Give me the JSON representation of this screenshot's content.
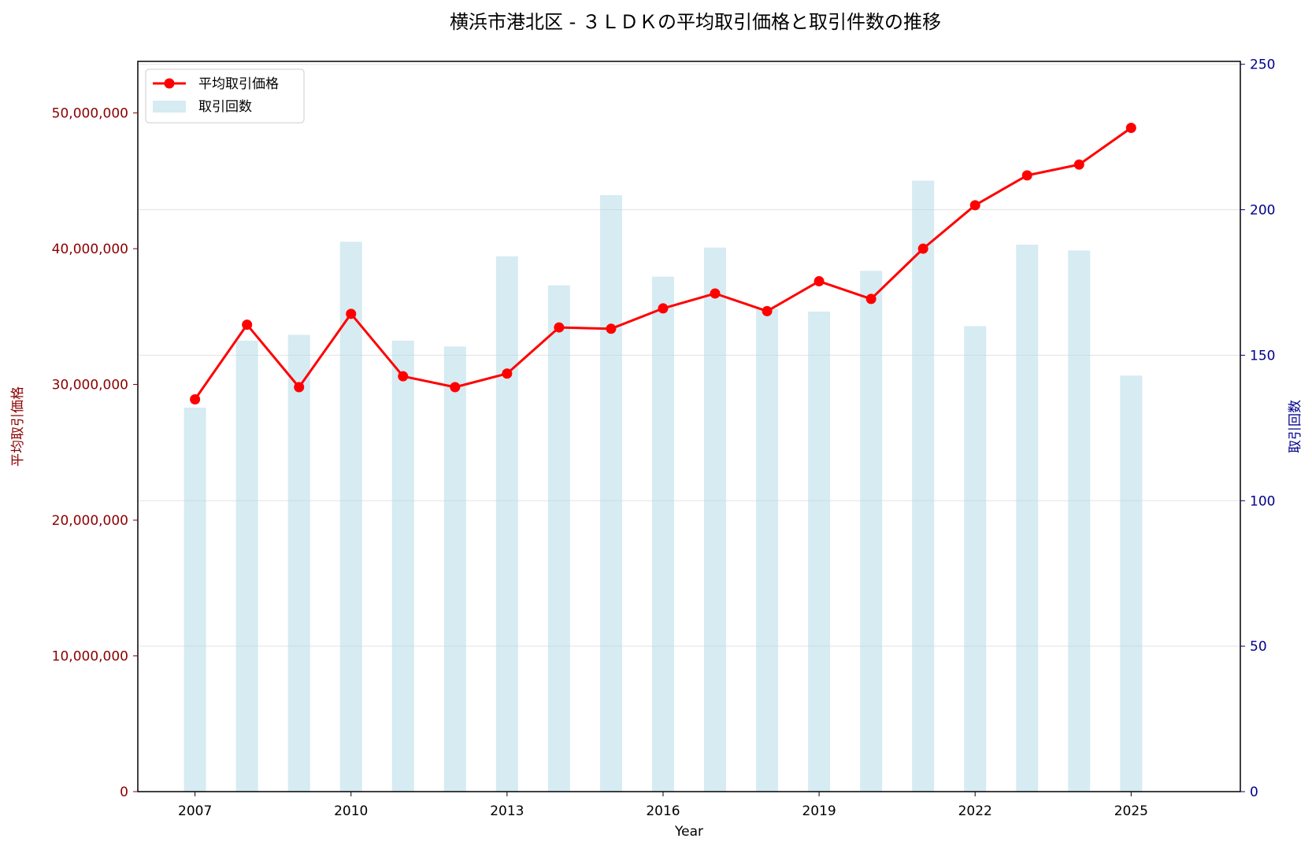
{
  "chart_data": {
    "type": "bar+line",
    "title": "横浜市港北区 - ３ＬＤＫの平均取引価格と取引件数の推移",
    "xlabel": "Year",
    "ylabel_left": "平均取引価格",
    "ylabel_right": "取引回数",
    "x": [
      2007,
      2008,
      2009,
      2010,
      2011,
      2012,
      2013,
      2014,
      2015,
      2016,
      2017,
      2018,
      2019,
      2020,
      2021,
      2022,
      2023,
      2024,
      2025
    ],
    "x_ticks": [
      "2007",
      "2010",
      "2013",
      "2016",
      "2019",
      "2022",
      "2025"
    ],
    "xlim": [
      2005.9,
      2027.1
    ],
    "ylim_left": [
      0,
      53800000
    ],
    "ylim_right": [
      0,
      251
    ],
    "y_ticks_left": [
      "0",
      "10,000,000",
      "20,000,000",
      "30,000,000",
      "40,000,000",
      "50,000,000"
    ],
    "y_tick_values_left": [
      0,
      10000000,
      20000000,
      30000000,
      40000000,
      50000000
    ],
    "y_ticks_right": [
      "0",
      "50",
      "100",
      "150",
      "200",
      "250"
    ],
    "y_tick_values_right": [
      0,
      50,
      100,
      150,
      200,
      250
    ],
    "grid": true,
    "legend_position": "top-left",
    "series": [
      {
        "name": "平均取引価格",
        "type": "line",
        "axis": "left",
        "color": "#ff0000",
        "values": [
          28900000,
          34400000,
          29800000,
          35200000,
          30600000,
          29800000,
          30800000,
          34200000,
          34100000,
          35600000,
          36700000,
          35400000,
          37600000,
          36300000,
          40000000,
          43200000,
          45400000,
          46200000,
          48900000
        ]
      },
      {
        "name": "取引回数",
        "type": "bar",
        "axis": "right",
        "color": "#add8e6",
        "values": [
          132,
          155,
          157,
          189,
          155,
          153,
          184,
          174,
          205,
          177,
          187,
          166,
          165,
          179,
          210,
          160,
          188,
          186,
          143
        ]
      }
    ],
    "colors": {
      "left_axis": "#8b0000",
      "right_axis": "#00008b",
      "line": "#ff0000",
      "bar": "#add8e6"
    }
  }
}
